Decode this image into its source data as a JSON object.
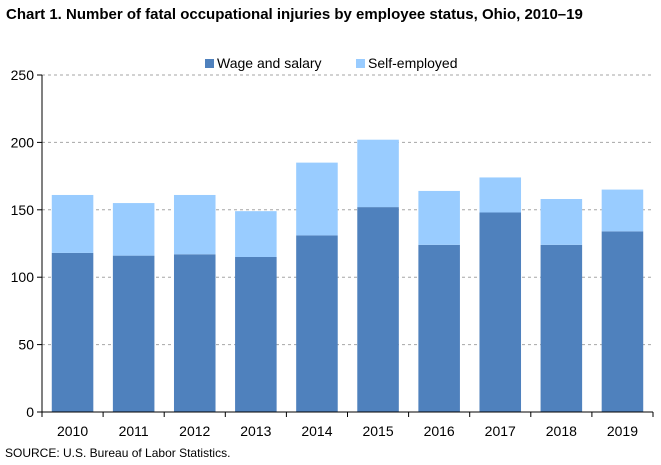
{
  "title": "Chart 1. Number of fatal occupational injuries by employee status, Ohio, 2010–19",
  "source": "SOURCE: U.S. Bureau of Labor Statistics.",
  "chart_data": {
    "type": "bar",
    "stacked": true,
    "title": "Chart 1. Number of fatal occupational injuries by employee status, Ohio, 2010–19",
    "xlabel": "",
    "ylabel": "",
    "categories": [
      "2010",
      "2011",
      "2012",
      "2013",
      "2014",
      "2015",
      "2016",
      "2017",
      "2018",
      "2019"
    ],
    "series": [
      {
        "name": "Wage and salary",
        "color": "#4f81bd",
        "values": [
          118,
          116,
          117,
          115,
          131,
          152,
          124,
          148,
          124,
          134
        ]
      },
      {
        "name": "Self-employed",
        "color": "#99ccff",
        "values": [
          43,
          39,
          44,
          34,
          54,
          50,
          40,
          26,
          34,
          31
        ]
      }
    ],
    "ylim": [
      0,
      250
    ],
    "yticks": [
      0,
      50,
      100,
      150,
      200,
      250
    ],
    "grid": true,
    "legend_position": "top-center"
  }
}
